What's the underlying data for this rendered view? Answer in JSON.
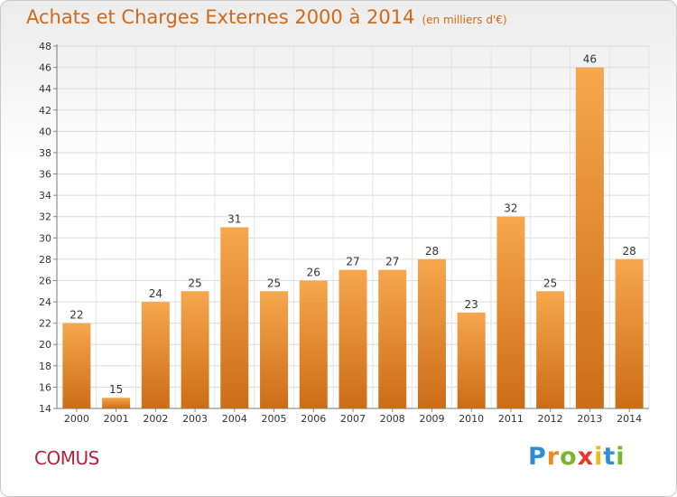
{
  "chart_data": {
    "type": "bar",
    "title": "Achats et Charges Externes 2000 à 2014",
    "unit": "(en milliers d'€)",
    "categories": [
      "2000",
      "2001",
      "2002",
      "2003",
      "2004",
      "2005",
      "2006",
      "2007",
      "2008",
      "2009",
      "2010",
      "2011",
      "2012",
      "2013",
      "2014"
    ],
    "values": [
      22,
      15,
      24,
      25,
      31,
      25,
      26,
      27,
      27,
      28,
      23,
      32,
      25,
      46,
      28
    ],
    "ylim": [
      14,
      48
    ],
    "yticks": [
      14,
      16,
      18,
      20,
      22,
      24,
      26,
      28,
      30,
      32,
      34,
      36,
      38,
      40,
      42,
      44,
      46,
      48
    ],
    "grid": true,
    "bar_color_top": "#f6a74e",
    "bar_color_bottom": "#cc6d16"
  },
  "commune": "COMUS",
  "logo": {
    "letters": [
      "P",
      "r",
      "o",
      "x",
      "i",
      "t",
      "i"
    ],
    "colors": [
      "#2f8fd6",
      "#f08a1e",
      "#7ab52c",
      "#e8382c",
      "#f0b81a",
      "#2f8fd6",
      "#7ab52c"
    ]
  }
}
